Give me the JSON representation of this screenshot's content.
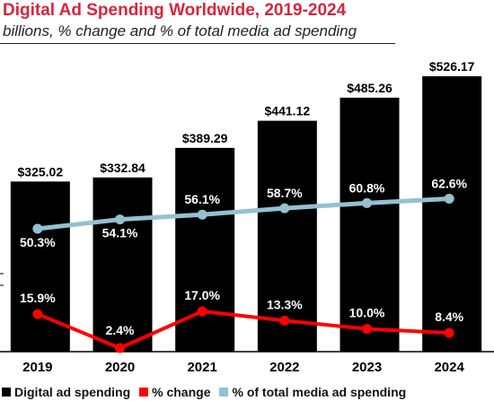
{
  "chart_data": {
    "type": "bar",
    "title": "Digital Ad Spending Worldwide, 2019-2024",
    "subtitle": "billions, % change and % of total media ad spending",
    "categories": [
      "2019",
      "2020",
      "2021",
      "2022",
      "2023",
      "2024"
    ],
    "series": [
      {
        "name": "Digital ad spending",
        "type": "bar",
        "color": "#000000",
        "values": [
          325.02,
          332.84,
          389.29,
          441.12,
          485.26,
          526.17
        ],
        "labels": [
          "$325.02",
          "$332.84",
          "$389.29",
          "$441.12",
          "$485.26",
          "$526.17"
        ]
      },
      {
        "name": "% change",
        "type": "line",
        "color": "#ff0000",
        "values": [
          15.9,
          2.4,
          17.0,
          13.3,
          10.0,
          8.4
        ],
        "labels": [
          "15.9%",
          "2.4%",
          "17.0%",
          "13.3%",
          "10.0%",
          "8.4%"
        ]
      },
      {
        "name": "% of total media ad spending",
        "type": "line",
        "color": "#94c1cf",
        "values": [
          50.3,
          54.1,
          56.1,
          58.7,
          60.8,
          62.6
        ],
        "labels": [
          "50.3%",
          "54.1%",
          "56.1%",
          "58.7%",
          "60.8%",
          "62.6%"
        ]
      }
    ],
    "bar_ylim": [
      0,
      600
    ],
    "share_ylim": [
      0,
      100
    ],
    "change_ylim": [
      0,
      60
    ],
    "grid": false,
    "legend_position": "bottom-left"
  }
}
